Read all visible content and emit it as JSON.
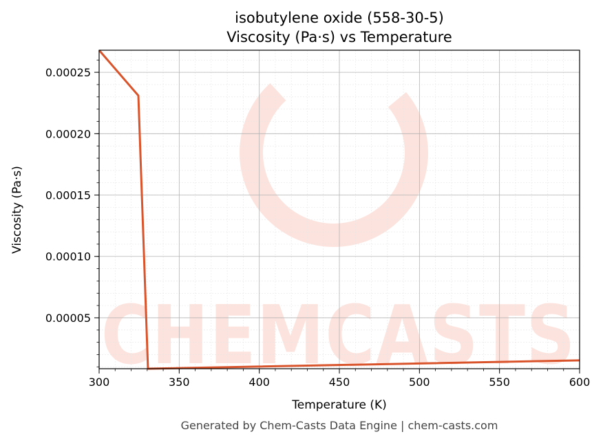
{
  "chart_data": {
    "type": "line",
    "title": "isobutylene oxide (558-30-5)",
    "subtitle": "Viscosity (Pa·s) vs Temperature",
    "xlabel": "Temperature (K)",
    "ylabel": "Viscosity (Pa·s)",
    "xlim": [
      300,
      600
    ],
    "ylim": [
      8.5e-06,
      0.000268
    ],
    "x_ticks": [
      300,
      350,
      400,
      450,
      500,
      550,
      600
    ],
    "x_tick_labels": [
      "300",
      "350",
      "400",
      "450",
      "500",
      "550",
      "600"
    ],
    "y_ticks": [
      5e-05,
      0.0001,
      0.00015,
      0.0002,
      0.00025
    ],
    "y_tick_labels": [
      "0.00005",
      "0.00010",
      "0.00015",
      "0.00020",
      "0.00025"
    ],
    "grid": true,
    "series": [
      {
        "color": "#d9532b",
        "x": [
          300,
          324.5,
          330.5,
          600
        ],
        "y": [
          0.000268,
          0.000231,
          8.5e-06,
          1.53e-05
        ]
      }
    ],
    "watermark": "CHEMCASTS",
    "footer": "Generated by Chem-Casts Data Engine | chem-casts.com"
  }
}
